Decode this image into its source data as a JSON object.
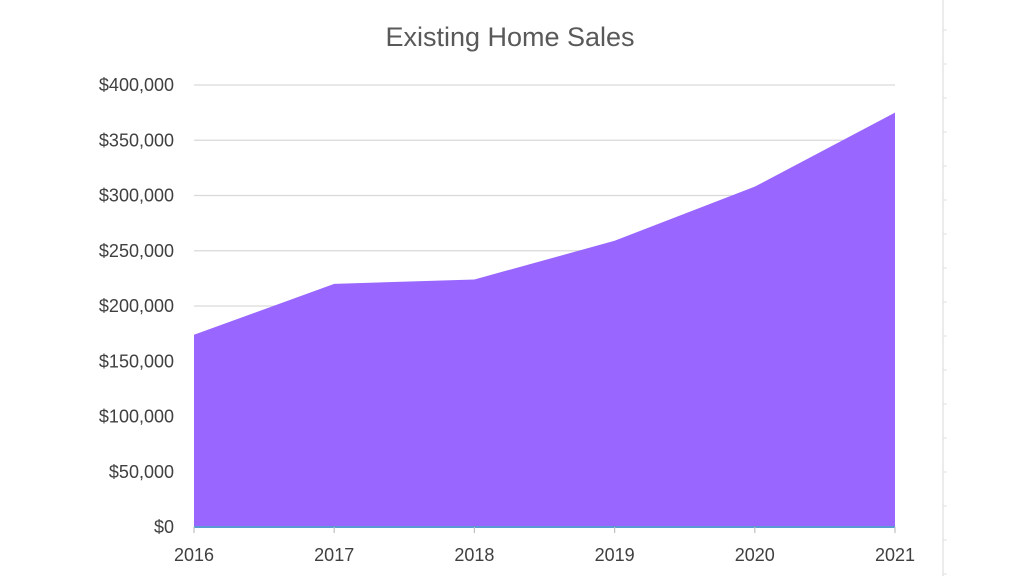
{
  "chart_data": {
    "type": "area",
    "title": "Existing Home Sales",
    "xlabel": "",
    "ylabel": "",
    "categories": [
      "2016",
      "2017",
      "2018",
      "2019",
      "2020",
      "2021"
    ],
    "series": [
      {
        "values": [
          174000,
          220000,
          224000,
          259000,
          308000,
          375000
        ]
      }
    ],
    "ylim": [
      0,
      400000
    ],
    "y_ticks": [
      0,
      50000,
      100000,
      150000,
      200000,
      250000,
      300000,
      350000,
      400000
    ],
    "y_tick_labels": [
      "$0",
      "$50,000",
      "$100,000",
      "$150,000",
      "$200,000",
      "$250,000",
      "$300,000",
      "$350,000",
      "$400,000"
    ],
    "grid": true,
    "legend": "none",
    "colors": {
      "area_fill": "#9966ff",
      "baseline": "#5b9bd5",
      "gridline": "#d9d9d9",
      "title": "#595959",
      "tick_label": "#404040"
    }
  }
}
